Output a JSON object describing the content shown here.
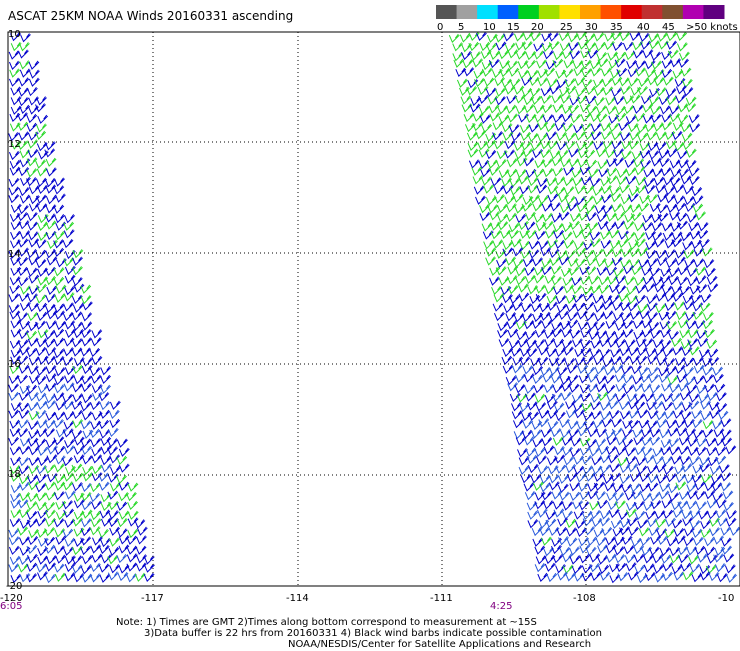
{
  "title": "ASCAT 25KM NOAA Winds 20160331 ascending",
  "legend": {
    "labels": [
      "0",
      "5",
      "10",
      "15",
      "20",
      "25",
      "30",
      "35",
      "40",
      "45",
      ">50 knots"
    ],
    "colors": [
      "#555555",
      "#a0a0a0",
      "#00e0ff",
      "#0060ff",
      "#00d020",
      "#a0e000",
      "#ffe000",
      "#ffa000",
      "#ff5000",
      "#e00000",
      "#c03030",
      "#805030",
      "#b000b0",
      "#600080"
    ]
  },
  "axes": {
    "lat_labels": [
      "10",
      "12",
      "14",
      "16",
      "18",
      "-20"
    ],
    "lon_labels": [
      "-120",
      "-117",
      "-114",
      "-111",
      "-108",
      "-10"
    ]
  },
  "times": [
    "6:05",
    "4:25"
  ],
  "swath_colors": {
    "blue": "#0000cc",
    "light_blue": "#2a5adc",
    "green": "#2ad82a"
  },
  "notes": {
    "line1": "Note: 1) Times are GMT 2)Times along bottom correspond to measurement at ~15S",
    "line2": "3)Data buffer is 22 hrs from 20160331 4) Black wind barbs indicate possible contamination",
    "line3": "NOAA/NESDIS/Center for Satellite Applications and Research"
  }
}
